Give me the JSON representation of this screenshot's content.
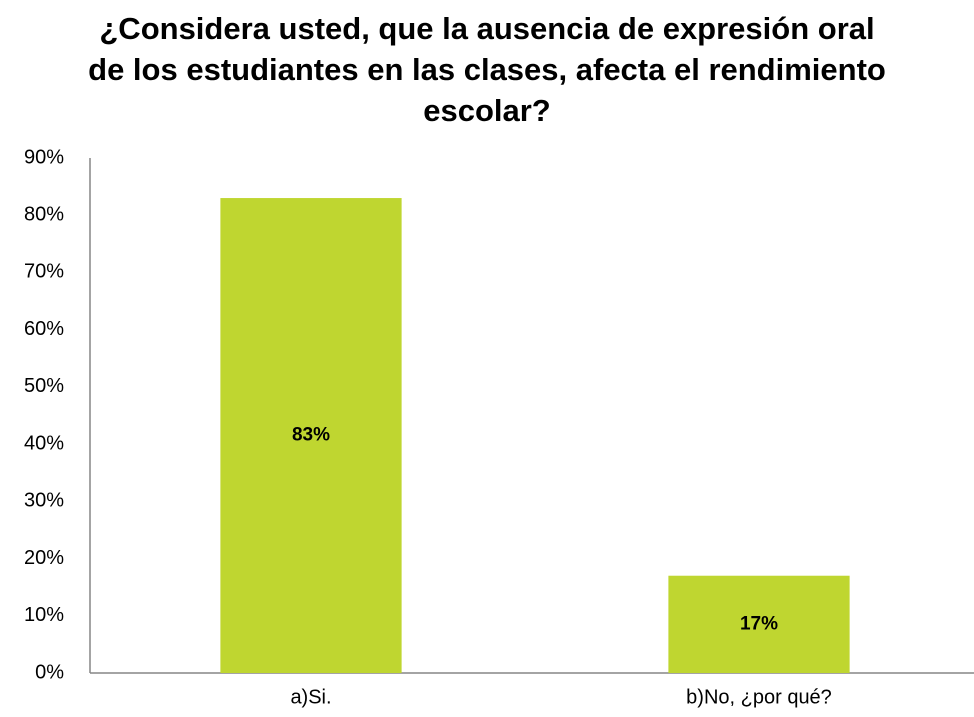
{
  "chart_data": {
    "type": "bar",
    "title": "¿Considera usted, que la ausencia de expresión oral de los estudiantes en las clases, afecta el rendimiento escolar?",
    "categories": [
      "a)Si.",
      "b)No, ¿por qué?"
    ],
    "values": [
      83,
      17
    ],
    "value_labels": [
      "83%",
      "17%"
    ],
    "color": "#bfd630",
    "ylim": [
      0,
      90
    ],
    "yticks": [
      {
        "value": 0,
        "label": "0%"
      },
      {
        "value": 10,
        "label": "10%"
      },
      {
        "value": 20,
        "label": "20%"
      },
      {
        "value": 30,
        "label": "30%"
      },
      {
        "value": 40,
        "label": "40%"
      },
      {
        "value": 50,
        "label": "50%"
      },
      {
        "value": 60,
        "label": "60%"
      },
      {
        "value": 70,
        "label": "70%"
      },
      {
        "value": 80,
        "label": "80%"
      },
      {
        "value": 90,
        "label": "90%"
      }
    ],
    "grid": false
  }
}
